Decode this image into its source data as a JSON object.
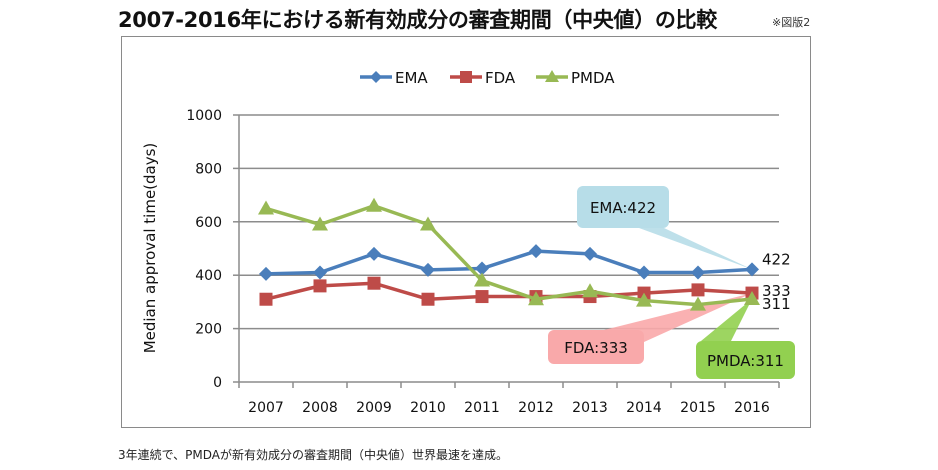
{
  "page": {
    "title": "2007-2016年における新有効成分の審査期間（中央値）の比較",
    "figure_note": "※図版2",
    "caption": "3年連続で、PMDAが新有効成分の審査期間（中央値）世界最速を達成。"
  },
  "chart_data": {
    "type": "line",
    "title": "2007-2016年における新有効成分の審査期間（中央値）の比較",
    "xlabel": "",
    "ylabel": "Median approval time(days)",
    "categories": [
      "2007",
      "2008",
      "2009",
      "2010",
      "2011",
      "2012",
      "2013",
      "2014",
      "2015",
      "2016"
    ],
    "ylim": [
      0,
      1000
    ],
    "yticks": [
      0,
      200,
      400,
      600,
      800,
      1000
    ],
    "grid": true,
    "legend_position": "top-center",
    "series": [
      {
        "name": "EMA",
        "color": "#4A7EBB",
        "marker": "diamond",
        "values": [
          405,
          410,
          480,
          420,
          425,
          490,
          480,
          410,
          410,
          422
        ]
      },
      {
        "name": "FDA",
        "color": "#BE4B48",
        "marker": "square",
        "values": [
          310,
          360,
          370,
          310,
          320,
          320,
          320,
          333,
          345,
          333
        ]
      },
      {
        "name": "PMDA",
        "color": "#98B954",
        "marker": "triangle",
        "values": [
          650,
          590,
          660,
          590,
          380,
          310,
          340,
          305,
          290,
          311
        ]
      }
    ],
    "end_labels": [
      "422",
      "333",
      "311"
    ],
    "annotations": [
      {
        "text": "EMA:422",
        "series": "EMA",
        "fill": "#B7DDE8"
      },
      {
        "text": "FDA:333",
        "series": "FDA",
        "fill": "#F9A9AA"
      },
      {
        "text": "PMDA:311",
        "series": "PMDA",
        "fill": "#92D050"
      }
    ]
  }
}
